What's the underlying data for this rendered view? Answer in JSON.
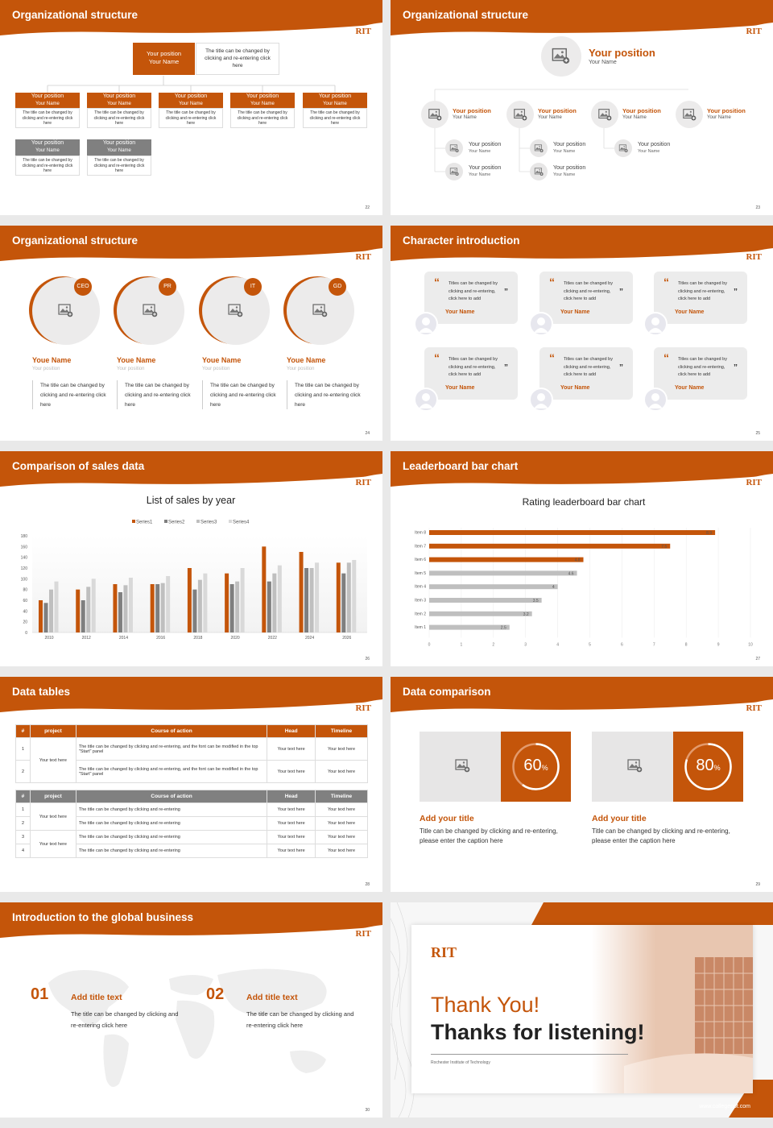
{
  "colors": {
    "accent": "#c4550a",
    "grey": "#808080",
    "light": "#ecebeb"
  },
  "logo": "RIT",
  "s22": {
    "title": "Organizational structure",
    "page": "22",
    "top": {
      "pos": "Your position",
      "name": "Your Name",
      "desc": "The title can be changed by clicking and re-entering click here"
    },
    "pos": "Your position",
    "name": "Your Name",
    "desc": "The title can be changed by clicking and re-entering click here"
  },
  "s23": {
    "title": "Organizational structure",
    "page": "23",
    "top_pos": "Your position",
    "top_name": "Your Name",
    "pos": "Your position",
    "name": "Your Name"
  },
  "s24": {
    "title": "Organizational structure",
    "page": "24",
    "people": [
      {
        "badge": "CEO",
        "name": "Youe Name",
        "pos": "Your position",
        "desc": "The title can be changed by clicking and re-entering click here"
      },
      {
        "badge": "PR",
        "name": "Youe Name",
        "pos": "Your position",
        "desc": "The title can be changed by clicking and re-entering click here"
      },
      {
        "badge": "IT",
        "name": "Youe Name",
        "pos": "Your position",
        "desc": "The title can be changed by clicking and re-entering click here"
      },
      {
        "badge": "GD",
        "name": "Youe Name",
        "pos": "Your position",
        "desc": "The title can be changed by clicking and re-entering click here"
      }
    ]
  },
  "s25": {
    "title": "Character introduction",
    "page": "25",
    "quote": "Titles can be changed by clicking and re-entering, click here to add",
    "name": "Your Name",
    "open_q": "“",
    "close_q": "”"
  },
  "s26": {
    "title": "Comparison of sales data",
    "page": "26"
  },
  "s27": {
    "title": "Leaderboard bar chart",
    "page": "27"
  },
  "s28": {
    "title": "Data tables",
    "page": "28",
    "t1_headers": [
      "#",
      "project",
      "Course of action",
      "Head",
      "Timeline"
    ],
    "t1_rows": [
      {
        "n": "1",
        "action": "The title can be changed by clicking and re-entering, and the font can be modified in the top \"Start\" panel",
        "head": "Your text here",
        "time": "Your text here"
      },
      {
        "n": "2",
        "action": "The title can be changed by clicking and re-entering, and the font can be modified in the top \"Start\" panel",
        "head": "Your text here",
        "time": "Your text here"
      }
    ],
    "t1_project": "Your text here",
    "t2_headers": [
      "#",
      "project",
      "Course of action",
      "Head",
      "Timeline"
    ],
    "t2_rows": [
      {
        "n": "1",
        "action": "The title can be changed by clicking and re-entering",
        "head": "Your text here",
        "time": "Your text here"
      },
      {
        "n": "2",
        "action": "The title can be changed by clicking and re-entering",
        "head": "Your text here",
        "time": "Your text here"
      },
      {
        "n": "3",
        "action": "The title can be changed by clicking and re-entering",
        "head": "Your text here",
        "time": "Your text here"
      },
      {
        "n": "4",
        "action": "The title can be changed by clicking and re-entering",
        "head": "Your text here",
        "time": "Your text here"
      }
    ],
    "t2_project": "Your text here"
  },
  "s29": {
    "title": "Data comparison",
    "page": "29",
    "items": [
      {
        "pct": "60",
        "pct_value": 0.6,
        "unit": "%",
        "title": "Add your title",
        "desc": "Title can be changed by clicking and re-entering, please enter the caption here"
      },
      {
        "pct": "80",
        "pct_value": 0.8,
        "unit": "%",
        "title": "Add your title",
        "desc": "Title can be changed by clicking and re-entering, please enter the caption here"
      }
    ]
  },
  "s30": {
    "title": "Introduction to the global business",
    "page": "30",
    "items": [
      {
        "num": "01",
        "title": "Add title text",
        "desc": "The title can be changed by clicking and re-entering click here"
      },
      {
        "num": "02",
        "title": "Add title text",
        "desc": "The title can be changed by clicking and re-entering click here"
      }
    ]
  },
  "s31": {
    "logo": "RIT",
    "thanks": "Thank You!",
    "listening": "Thanks for listening!",
    "org": "Rochester Institute of Technology",
    "url": "www.collegeppt.com"
  },
  "chart_data": [
    {
      "type": "bar",
      "title": "List of sales by year",
      "categories": [
        "2010",
        "2012",
        "2014",
        "2016",
        "2018",
        "2020",
        "2022",
        "2024",
        "2026"
      ],
      "series": [
        {
          "name": "Series1",
          "color": "#c4550a",
          "values": [
            60,
            80,
            90,
            90,
            120,
            110,
            160,
            150,
            130
          ]
        },
        {
          "name": "Series2",
          "color": "#7f7f7f",
          "values": [
            55,
            60,
            75,
            90,
            80,
            90,
            95,
            120,
            110
          ]
        },
        {
          "name": "Series3",
          "color": "#bfbfbf",
          "values": [
            80,
            85,
            88,
            92,
            98,
            95,
            110,
            120,
            130
          ]
        },
        {
          "name": "Series4",
          "color": "#d9d9d9",
          "values": [
            95,
            100,
            102,
            105,
            110,
            120,
            125,
            130,
            135
          ]
        }
      ],
      "yticks": [
        "0",
        "20",
        "40",
        "60",
        "80",
        "100",
        "120",
        "140",
        "160",
        "180"
      ],
      "ylim": [
        0,
        180
      ],
      "legend": "top",
      "grid": false
    },
    {
      "type": "bar",
      "orientation": "horizontal",
      "title": "Rating leaderboard bar chart",
      "categories": [
        "Item 8",
        "Item 7",
        "Item 6",
        "Item 5",
        "Item 4",
        "Item 3",
        "Item 2",
        "Item 1"
      ],
      "values": [
        8.9,
        7.5,
        4.8,
        4.6,
        4,
        3.5,
        3.2,
        2.5
      ],
      "value_labels": [
        "8.9",
        "7.5",
        "4.8",
        "4.6",
        "4",
        "3.5",
        "3.2",
        "2.5"
      ],
      "highlight_count": 3,
      "xticks": [
        "0",
        "1",
        "2",
        "3",
        "4",
        "5",
        "6",
        "7",
        "8",
        "9",
        "10"
      ],
      "xlim": [
        0,
        10
      ],
      "grid": true
    }
  ]
}
